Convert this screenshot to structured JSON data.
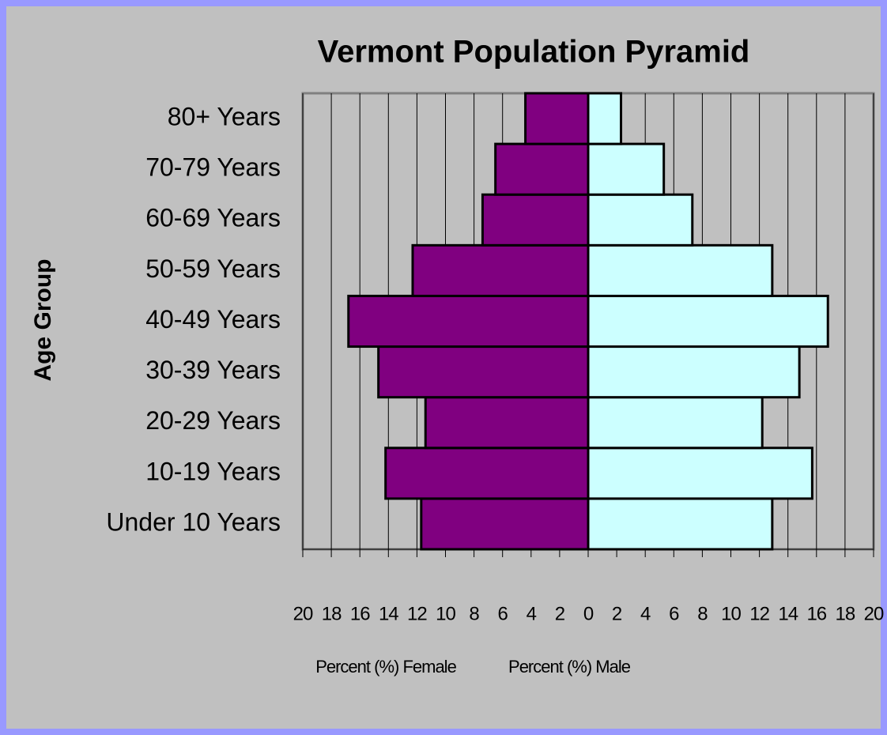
{
  "chart_data": {
    "type": "pyramid",
    "title": "Vermont Population Pyramid",
    "ylabel": "Age Group",
    "xlabels": [
      "Percent (%) Female",
      "Percent (%) Male"
    ],
    "categories": [
      "Under 10 Years",
      "10-19 Years",
      "20-29 Years",
      "30-39 Years",
      "40-49 Years",
      "50-59 Years",
      "60-69 Years",
      "70-79 Years",
      "80+ Years"
    ],
    "series": [
      {
        "name": "Female",
        "color": "#800080",
        "values": [
          -11.7,
          -14.2,
          -11.4,
          -14.7,
          -16.8,
          -12.3,
          -7.4,
          -6.5,
          -4.4
        ]
      },
      {
        "name": "Male",
        "color": "#ccffff",
        "values": [
          12.9,
          15.7,
          12.2,
          14.8,
          16.8,
          12.9,
          7.3,
          5.3,
          2.3
        ]
      }
    ],
    "xlim": [
      -20,
      20
    ],
    "xticks": [
      {
        "value": -20,
        "label": "20"
      },
      {
        "value": -18,
        "label": "18"
      },
      {
        "value": -16,
        "label": "16"
      },
      {
        "value": -14,
        "label": "14"
      },
      {
        "value": -12,
        "label": "12"
      },
      {
        "value": -10,
        "label": "10"
      },
      {
        "value": -8,
        "label": "8"
      },
      {
        "value": -6,
        "label": "6"
      },
      {
        "value": -4,
        "label": "4"
      },
      {
        "value": -2,
        "label": "2"
      },
      0,
      2,
      4,
      6,
      8,
      10,
      12,
      14,
      16,
      18,
      20
    ],
    "grid": true
  }
}
